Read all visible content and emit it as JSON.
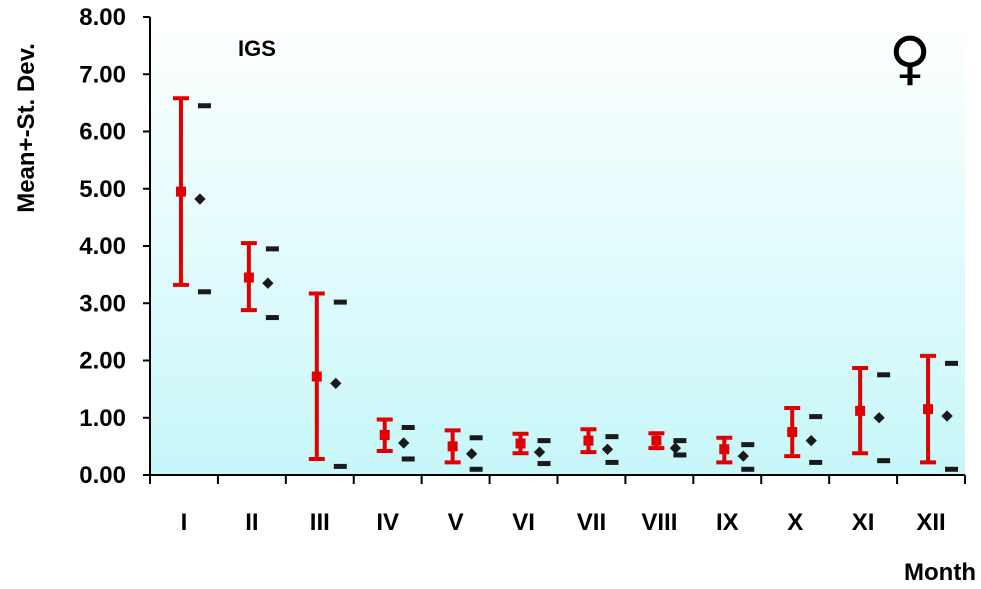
{
  "chart_data": {
    "type": "scatter",
    "title": "IGS",
    "symbol": "♀",
    "xlabel": "Month",
    "ylabel": "Mean+-St. Dev.",
    "categories": [
      "I",
      "II",
      "III",
      "IV",
      "V",
      "VI",
      "VII",
      "VIII",
      "IX",
      "X",
      "XI",
      "XII"
    ],
    "ylim": [
      0,
      8
    ],
    "yticks": [
      "0.00",
      "1.00",
      "2.00",
      "3.00",
      "4.00",
      "5.00",
      "6.00",
      "7.00",
      "8.00"
    ],
    "grid": false,
    "series": [
      {
        "color": "#e00000",
        "mean": [
          4.95,
          3.45,
          1.72,
          0.7,
          0.5,
          0.55,
          0.6,
          0.6,
          0.45,
          0.75,
          1.12,
          1.15
        ],
        "lower": [
          3.32,
          2.88,
          0.28,
          0.42,
          0.22,
          0.38,
          0.4,
          0.47,
          0.22,
          0.33,
          0.38,
          0.22
        ],
        "upper": [
          6.58,
          4.05,
          3.17,
          0.97,
          0.78,
          0.72,
          0.8,
          0.73,
          0.65,
          1.17,
          1.87,
          2.08
        ]
      },
      {
        "color": "#1a1a1a",
        "mean": [
          4.82,
          3.35,
          1.6,
          0.56,
          0.37,
          0.4,
          0.45,
          0.47,
          0.33,
          0.6,
          1.0,
          1.03
        ],
        "lower": [
          3.2,
          2.75,
          0.15,
          0.28,
          0.1,
          0.2,
          0.22,
          0.35,
          0.1,
          0.22,
          0.25,
          0.1
        ],
        "upper": [
          6.45,
          3.95,
          3.02,
          0.83,
          0.65,
          0.6,
          0.67,
          0.6,
          0.53,
          1.02,
          1.75,
          1.95
        ]
      }
    ]
  }
}
